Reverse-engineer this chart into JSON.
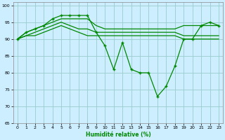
{
  "xlabel": "Humidité relative (%)",
  "background_color": "#cceeff",
  "grid_color": "#99cccc",
  "line_color": "#008800",
  "ylim": [
    65,
    101
  ],
  "xlim": [
    -0.5,
    23.5
  ],
  "yticks": [
    65,
    70,
    75,
    80,
    85,
    90,
    95,
    100
  ],
  "xticks": [
    0,
    1,
    2,
    3,
    4,
    5,
    6,
    7,
    8,
    9,
    10,
    11,
    12,
    13,
    14,
    15,
    16,
    17,
    18,
    19,
    20,
    21,
    22,
    23
  ],
  "series_main": [
    90,
    92,
    93,
    94,
    96,
    97,
    97,
    97,
    97,
    92,
    88,
    81,
    89,
    81,
    80,
    80,
    73,
    76,
    82,
    90,
    90,
    94,
    95,
    94
  ],
  "series_flat1": [
    90,
    92,
    93,
    94,
    95,
    96,
    96,
    96,
    96,
    94,
    93,
    93,
    93,
    93,
    93,
    93,
    93,
    93,
    93,
    94,
    94,
    94,
    94,
    94
  ],
  "series_flat2": [
    90,
    91,
    92,
    93,
    94,
    95,
    94,
    93,
    93,
    92,
    92,
    92,
    92,
    92,
    92,
    92,
    92,
    92,
    92,
    91,
    91,
    91,
    91,
    91
  ],
  "series_flat3": [
    90,
    91,
    91,
    92,
    93,
    94,
    93,
    92,
    91,
    91,
    91,
    91,
    91,
    91,
    91,
    91,
    91,
    91,
    91,
    90,
    90,
    90,
    90,
    90
  ]
}
